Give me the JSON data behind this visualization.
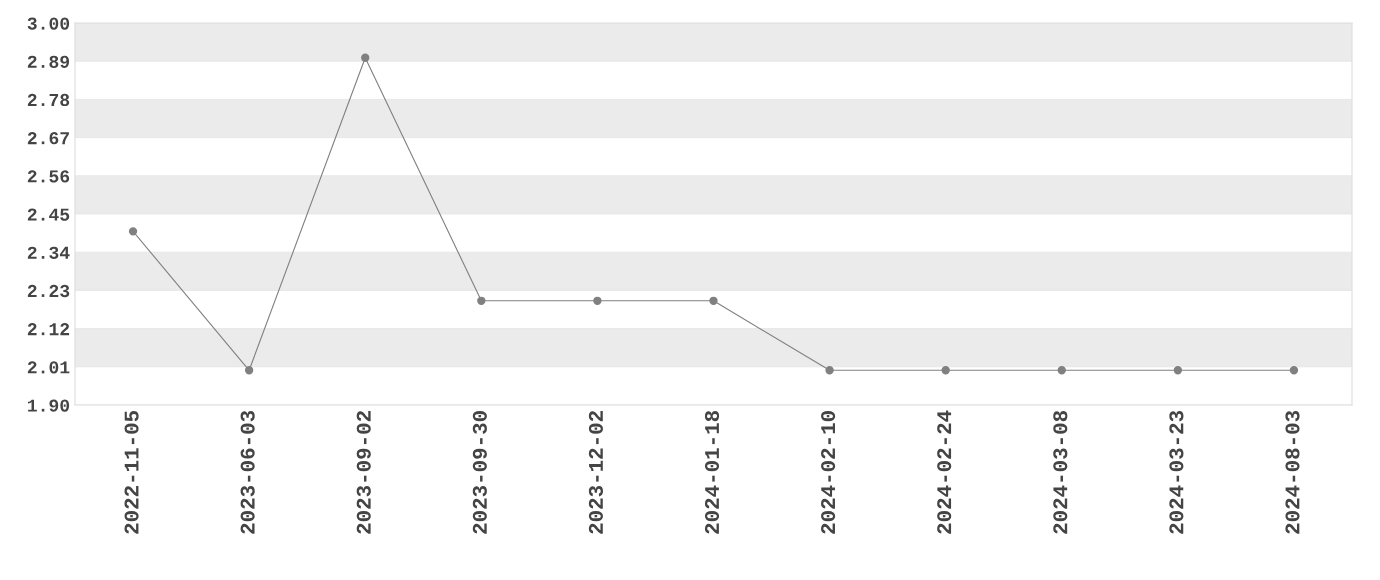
{
  "chart_data": {
    "type": "line",
    "categories": [
      "2022-11-05",
      "2023-06-03",
      "2023-09-02",
      "2023-09-30",
      "2023-12-02",
      "2024-01-18",
      "2024-02-10",
      "2024-02-24",
      "2024-03-08",
      "2024-03-23",
      "2024-08-03"
    ],
    "series": [
      {
        "color": "#808080",
        "values": [
          2.4,
          2.0,
          2.9,
          2.2,
          2.2,
          2.2,
          2.0,
          2.0,
          2.0,
          2.0,
          2.0
        ]
      }
    ],
    "ylim": [
      1.9,
      3.0
    ],
    "yticks": [
      {
        "value": 1.9,
        "label": "1.90"
      },
      {
        "value": 2.01,
        "label": "2.01"
      },
      {
        "value": 2.12,
        "label": "2.12"
      },
      {
        "value": 2.23,
        "label": "2.23"
      },
      {
        "value": 2.34,
        "label": "2.34"
      },
      {
        "value": 2.45,
        "label": "2.45"
      },
      {
        "value": 2.56,
        "label": "2.56"
      },
      {
        "value": 2.67,
        "label": "2.67"
      },
      {
        "value": 2.78,
        "label": "2.78"
      },
      {
        "value": 2.89,
        "label": "2.89"
      },
      {
        "value": 3.0,
        "label": "3.00"
      }
    ],
    "grid": "y",
    "marker": "circle",
    "line_style": "solid",
    "legend": false
  }
}
